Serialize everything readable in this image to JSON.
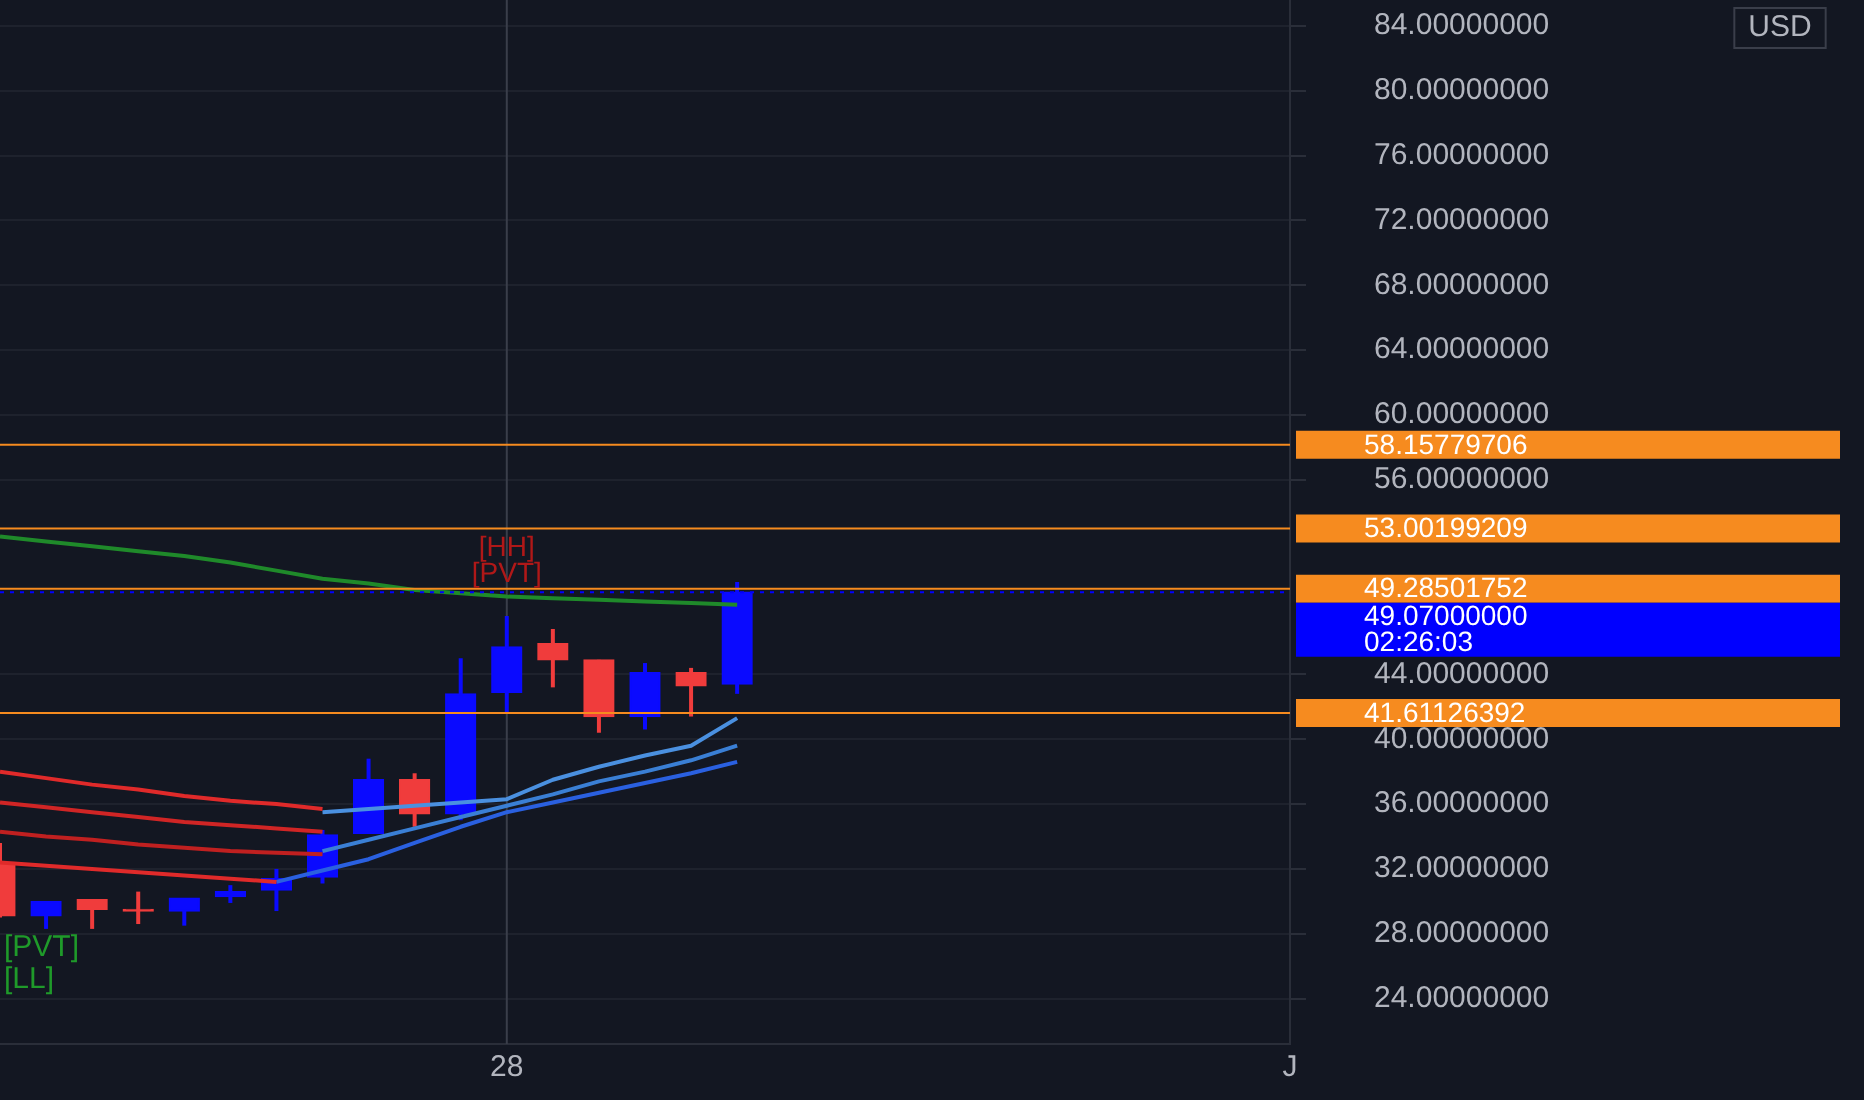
{
  "chart_data": {
    "type": "candlestick",
    "categories": [
      null,
      null,
      null,
      null,
      null,
      null,
      null,
      null,
      null,
      null,
      null,
      "28",
      null,
      null,
      null,
      null,
      null,
      null,
      null,
      null,
      null,
      null,
      null,
      null,
      null,
      null,
      null,
      null,
      "J"
    ],
    "ohlc": [
      [
        32.4,
        33.6,
        29.0,
        29.1
      ],
      [
        29.1,
        30.0,
        28.3,
        30.0
      ],
      [
        30.1,
        30.1,
        28.3,
        29.5
      ],
      [
        29.5,
        30.6,
        28.6,
        29.4
      ],
      [
        29.4,
        30.2,
        28.5,
        30.2
      ],
      [
        30.3,
        31.0,
        29.9,
        30.6
      ],
      [
        30.7,
        32.0,
        29.4,
        31.4
      ],
      [
        31.5,
        34.4,
        31.1,
        34.1
      ],
      [
        34.2,
        38.8,
        34.2,
        37.5
      ],
      [
        37.5,
        37.9,
        34.6,
        35.4
      ],
      [
        35.4,
        45.0,
        35.0,
        42.8
      ],
      [
        42.9,
        47.6,
        41.6,
        45.7
      ],
      [
        45.9,
        46.8,
        43.2,
        44.9
      ],
      [
        44.9,
        44.9,
        40.4,
        41.4
      ],
      [
        41.4,
        44.7,
        40.6,
        44.1
      ],
      [
        44.1,
        44.4,
        41.4,
        43.3
      ],
      [
        43.4,
        49.7,
        42.8,
        49.07
      ],
      null,
      null,
      null,
      null,
      null,
      null,
      null,
      null,
      null,
      null,
      null,
      null
    ],
    "colors": [
      "#f03c3c",
      "#0a0aff",
      "#f03c3c",
      "#f03c3c",
      "#0a0aff",
      "#0a0aff",
      "#0a0aff",
      "#0a0aff",
      "#0a0aff",
      "#f03c3c",
      "#0a0aff",
      "#0a0aff",
      "#f03c3c",
      "#f03c3c",
      "#0a0aff",
      "#f03c3c",
      "#0a0aff",
      null,
      null,
      null,
      null,
      null,
      null,
      null,
      null,
      null,
      null,
      null,
      null
    ],
    "series": [
      {
        "type": "line",
        "color": "#1f8a2a",
        "values": [
          52.5,
          52.2,
          51.9,
          51.6,
          51.3,
          50.9,
          50.4,
          49.9,
          49.6,
          49.2,
          49.0,
          48.8,
          48.7,
          48.6,
          48.5,
          48.4,
          48.3,
          null,
          null,
          null,
          null,
          null,
          null,
          null,
          null,
          null,
          null,
          null,
          null
        ]
      },
      {
        "type": "line",
        "color": "#e02a2a",
        "values": [
          38.0,
          37.6,
          37.2,
          36.9,
          36.5,
          36.2,
          36.0,
          35.7,
          null,
          null,
          null,
          null,
          null,
          null,
          null,
          null,
          null,
          null,
          null,
          null,
          null,
          null,
          null,
          null,
          null,
          null,
          null,
          null,
          null
        ]
      },
      {
        "type": "line",
        "color": "#d02525",
        "values": [
          36.1,
          35.8,
          35.5,
          35.2,
          34.9,
          34.7,
          34.5,
          34.3,
          null,
          null,
          null,
          null,
          null,
          null,
          null,
          null,
          null,
          null,
          null,
          null,
          null,
          null,
          null,
          null,
          null,
          null,
          null,
          null,
          null
        ]
      },
      {
        "type": "line",
        "color": "#c02020",
        "values": [
          34.3,
          34.0,
          33.8,
          33.5,
          33.3,
          33.1,
          33.0,
          32.9,
          null,
          null,
          null,
          null,
          null,
          null,
          null,
          null,
          null,
          null,
          null,
          null,
          null,
          null,
          null,
          null,
          null,
          null,
          null,
          null,
          null
        ]
      },
      {
        "type": "line",
        "color": "#e02a2a",
        "values": [
          32.4,
          32.2,
          32.0,
          31.8,
          31.6,
          31.4,
          31.2,
          null,
          null,
          null,
          null,
          null,
          null,
          null,
          null,
          null,
          null,
          null,
          null,
          null,
          null,
          null,
          null,
          null,
          null,
          null,
          null,
          null,
          null
        ]
      },
      {
        "type": "line",
        "color": "#4a90e0",
        "values": [
          null,
          null,
          null,
          null,
          null,
          null,
          null,
          35.5,
          35.7,
          35.9,
          36.1,
          36.3,
          37.5,
          38.3,
          39.0,
          39.6,
          41.3,
          null,
          null,
          null,
          null,
          null,
          null,
          null,
          null,
          null,
          null,
          null,
          null
        ]
      },
      {
        "type": "line",
        "color": "#3a7fd5",
        "values": [
          null,
          null,
          null,
          null,
          null,
          null,
          null,
          33.1,
          33.8,
          34.5,
          35.2,
          35.9,
          36.6,
          37.4,
          38.0,
          38.7,
          39.6,
          null,
          null,
          null,
          null,
          null,
          null,
          null,
          null,
          null,
          null,
          null,
          null
        ]
      },
      {
        "type": "line",
        "color": "#2a60e0",
        "values": [
          null,
          null,
          null,
          null,
          null,
          null,
          31.2,
          31.9,
          32.6,
          33.6,
          34.6,
          35.5,
          36.1,
          36.7,
          37.3,
          37.9,
          38.6,
          null,
          null,
          null,
          null,
          null,
          null,
          null,
          null,
          null,
          null,
          null,
          null
        ]
      }
    ],
    "ylim": [
      21.2,
      85.6
    ],
    "yticks": [
      {
        "value": 24,
        "label": "24.00000000"
      },
      {
        "value": 28,
        "label": "28.00000000"
      },
      {
        "value": 32,
        "label": "32.00000000"
      },
      {
        "value": 36,
        "label": "36.00000000"
      },
      {
        "value": 40,
        "label": "40.00000000"
      },
      {
        "value": 44,
        "label": "44.00000000"
      },
      {
        "value": 56,
        "label": "56.00000000"
      },
      {
        "value": 60,
        "label": "60.00000000"
      },
      {
        "value": 64,
        "label": "64.00000000"
      },
      {
        "value": 68,
        "label": "68.00000000"
      },
      {
        "value": 72,
        "label": "72.00000000"
      },
      {
        "value": 76,
        "label": "76.00000000"
      },
      {
        "value": 80,
        "label": "80.00000000"
      },
      {
        "value": 84,
        "label": "84.00000000"
      }
    ],
    "grid": "y",
    "ref_lines": [
      {
        "axis": "x",
        "value": "28",
        "color": "#3a3e4a"
      },
      {
        "axis": "y",
        "value": 58.15779706,
        "label": "58.15779706",
        "color": "#f68b1f"
      },
      {
        "axis": "y",
        "value": 53.00199209,
        "label": "53.00199209",
        "color": "#f68b1f"
      },
      {
        "axis": "y",
        "value": 49.28501752,
        "label": "49.28501752",
        "color": "#f68b1f"
      },
      {
        "axis": "y",
        "value": 49.07,
        "label": "49.07000000\n02:26:03",
        "color": "#0000ff",
        "line_style": "dotted"
      },
      {
        "axis": "y",
        "value": 41.61126392,
        "label": "41.61126392",
        "color": "#f68b1f"
      }
    ],
    "annotations": [
      "USD",
      {
        "text": "[HH]",
        "x": "28",
        "y": 47.6
      },
      {
        "text": "[PVT]",
        "x": "28",
        "y": 47.6
      },
      "[PVT]",
      "[LL]"
    ]
  }
}
